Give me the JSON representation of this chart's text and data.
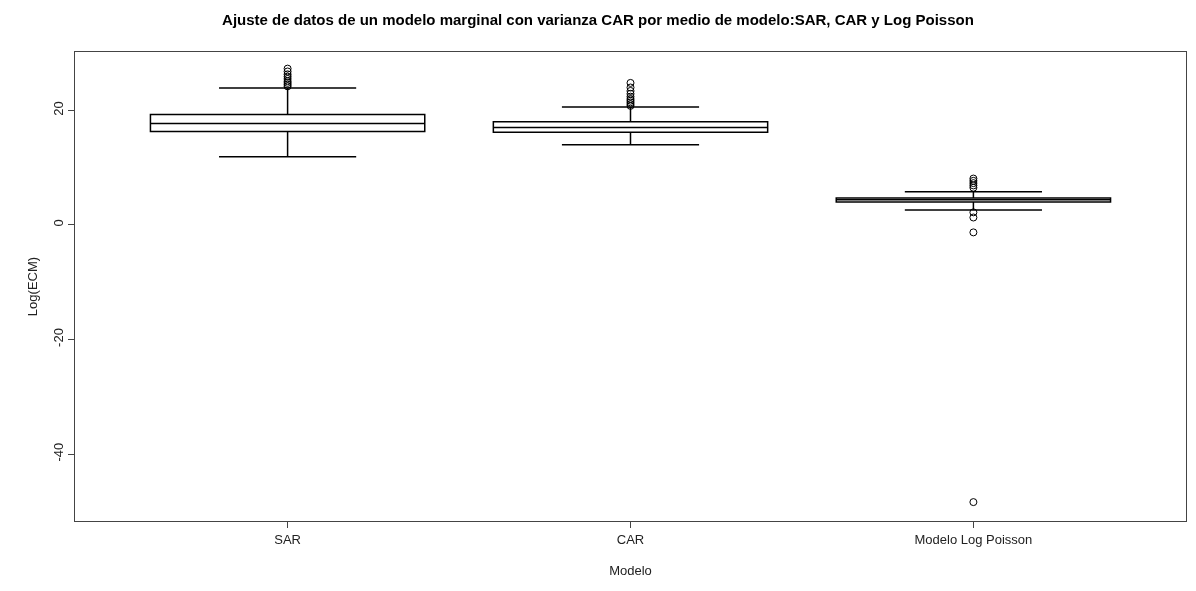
{
  "chart_data": {
    "type": "box",
    "title": "Ajuste de datos de un modelo marginal con varianza CAR por medio de modelo:SAR, CAR y Log Poisson",
    "xlabel": "Modelo",
    "ylabel": "Log(ECM)",
    "categories": [
      "SAR",
      "CAR",
      "Modelo Log Poisson"
    ],
    "boxes": [
      {
        "low": 11.9,
        "q1": 16.3,
        "median": 17.7,
        "q3": 19.3,
        "high": 23.9,
        "outliers": [
          24.2,
          24.5,
          24.8,
          25.1,
          25.5,
          25.9,
          26.3,
          26.8,
          27.3
        ]
      },
      {
        "low": 14.0,
        "q1": 16.2,
        "median": 17.0,
        "q3": 18.0,
        "high": 20.6,
        "outliers": [
          20.8,
          21.1,
          21.4,
          21.7,
          22.0,
          22.4,
          22.9,
          23.4,
          24.0,
          24.8
        ]
      },
      {
        "low": 2.6,
        "q1": 4.0,
        "median": 4.4,
        "q3": 4.7,
        "high": 5.8,
        "outliers": [
          6.5,
          6.9,
          7.3,
          7.7,
          8.1,
          2.2,
          1.3,
          -1.3,
          -48.4
        ]
      }
    ],
    "color": "#000000",
    "marker": "circle",
    "ylim": [
      -51.7,
      30.2
    ],
    "yticks": [
      -40,
      -20,
      0,
      20
    ]
  }
}
